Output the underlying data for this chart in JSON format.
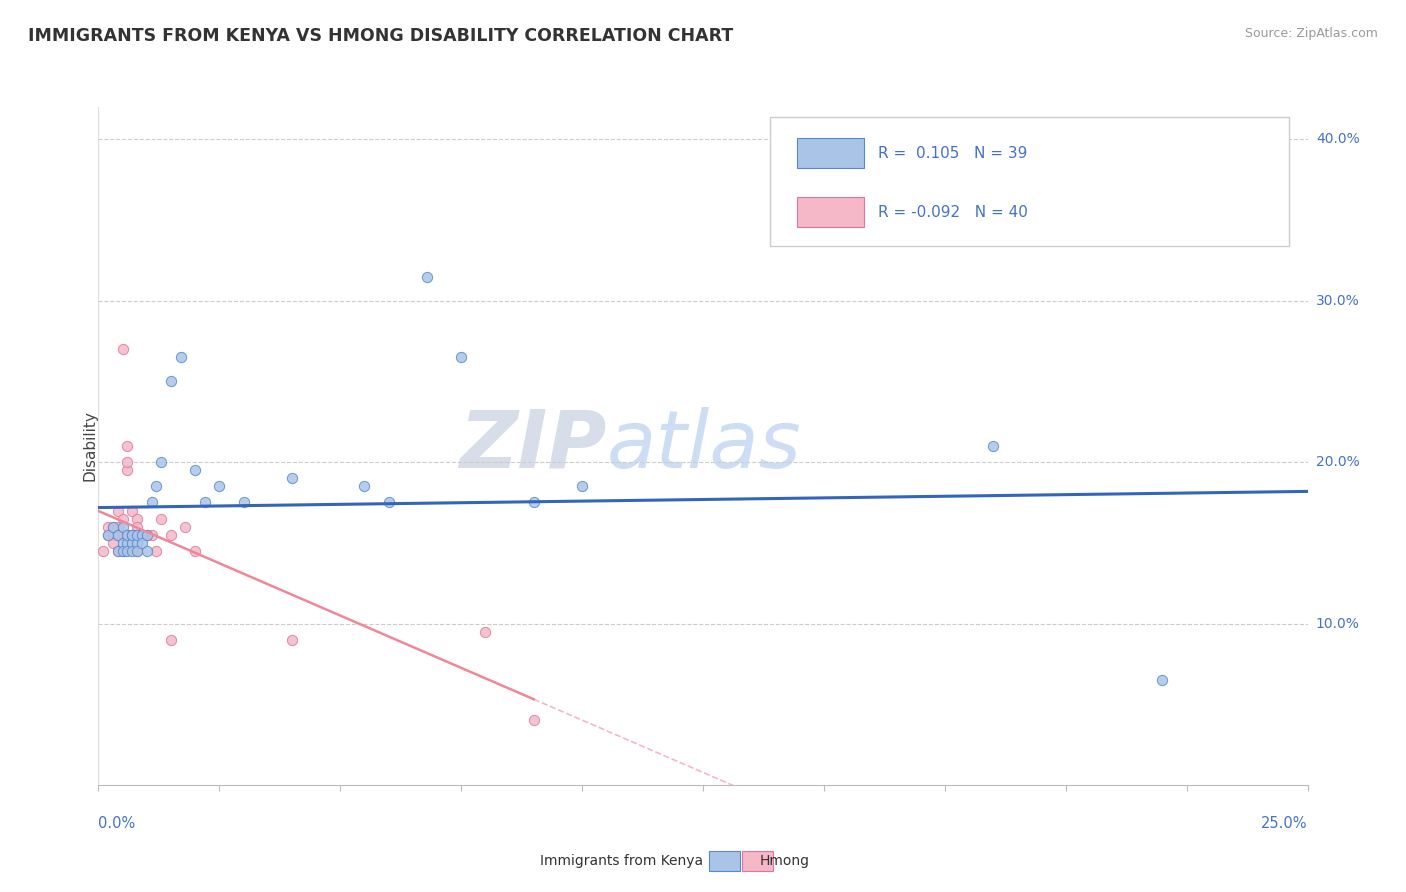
{
  "title": "IMMIGRANTS FROM KENYA VS HMONG DISABILITY CORRELATION CHART",
  "source": "Source: ZipAtlas.com",
  "watermark_zip": "ZIP",
  "watermark_atlas": "atlas",
  "ylabel": "Disability",
  "xlim": [
    0.0,
    0.25
  ],
  "ylim": [
    0.0,
    0.42
  ],
  "color_kenya": "#aac4e8",
  "color_kenya_edge": "#5588cc",
  "color_kenya_line": "#3366bb",
  "color_hmong": "#f4b8c8",
  "color_hmong_edge": "#dd7799",
  "color_hmong_line": "#ee8899",
  "color_axis": "#4472c4",
  "color_source": "#999999",
  "color_watermark_zip": "#c8d0e0",
  "color_watermark_atlas": "#b8d0f0",
  "grid_color": "#cccccc",
  "background_color": "#ffffff",
  "kenya_x": [
    0.002,
    0.003,
    0.004,
    0.004,
    0.005,
    0.005,
    0.005,
    0.006,
    0.006,
    0.006,
    0.007,
    0.007,
    0.007,
    0.007,
    0.008,
    0.008,
    0.008,
    0.009,
    0.009,
    0.01,
    0.01,
    0.011,
    0.012,
    0.013,
    0.015,
    0.017,
    0.02,
    0.022,
    0.025,
    0.03,
    0.04,
    0.055,
    0.06,
    0.068,
    0.075,
    0.09,
    0.1,
    0.185,
    0.22
  ],
  "kenya_y": [
    0.155,
    0.16,
    0.155,
    0.145,
    0.16,
    0.15,
    0.145,
    0.15,
    0.155,
    0.145,
    0.155,
    0.15,
    0.155,
    0.145,
    0.15,
    0.155,
    0.145,
    0.155,
    0.15,
    0.155,
    0.145,
    0.175,
    0.185,
    0.2,
    0.25,
    0.265,
    0.195,
    0.175,
    0.185,
    0.175,
    0.19,
    0.185,
    0.175,
    0.315,
    0.265,
    0.175,
    0.185,
    0.21,
    0.065
  ],
  "hmong_x": [
    0.001,
    0.002,
    0.002,
    0.003,
    0.003,
    0.003,
    0.004,
    0.004,
    0.004,
    0.004,
    0.005,
    0.005,
    0.005,
    0.005,
    0.005,
    0.006,
    0.006,
    0.006,
    0.006,
    0.007,
    0.007,
    0.007,
    0.008,
    0.008,
    0.008,
    0.008,
    0.008,
    0.009,
    0.009,
    0.01,
    0.011,
    0.012,
    0.013,
    0.015,
    0.015,
    0.018,
    0.02,
    0.04,
    0.08,
    0.09
  ],
  "hmong_y": [
    0.145,
    0.155,
    0.16,
    0.155,
    0.16,
    0.15,
    0.17,
    0.155,
    0.16,
    0.145,
    0.27,
    0.155,
    0.155,
    0.165,
    0.145,
    0.195,
    0.2,
    0.21,
    0.155,
    0.17,
    0.155,
    0.155,
    0.165,
    0.16,
    0.155,
    0.145,
    0.15,
    0.155,
    0.155,
    0.155,
    0.155,
    0.145,
    0.165,
    0.155,
    0.09,
    0.16,
    0.145,
    0.09,
    0.095,
    0.04
  ]
}
